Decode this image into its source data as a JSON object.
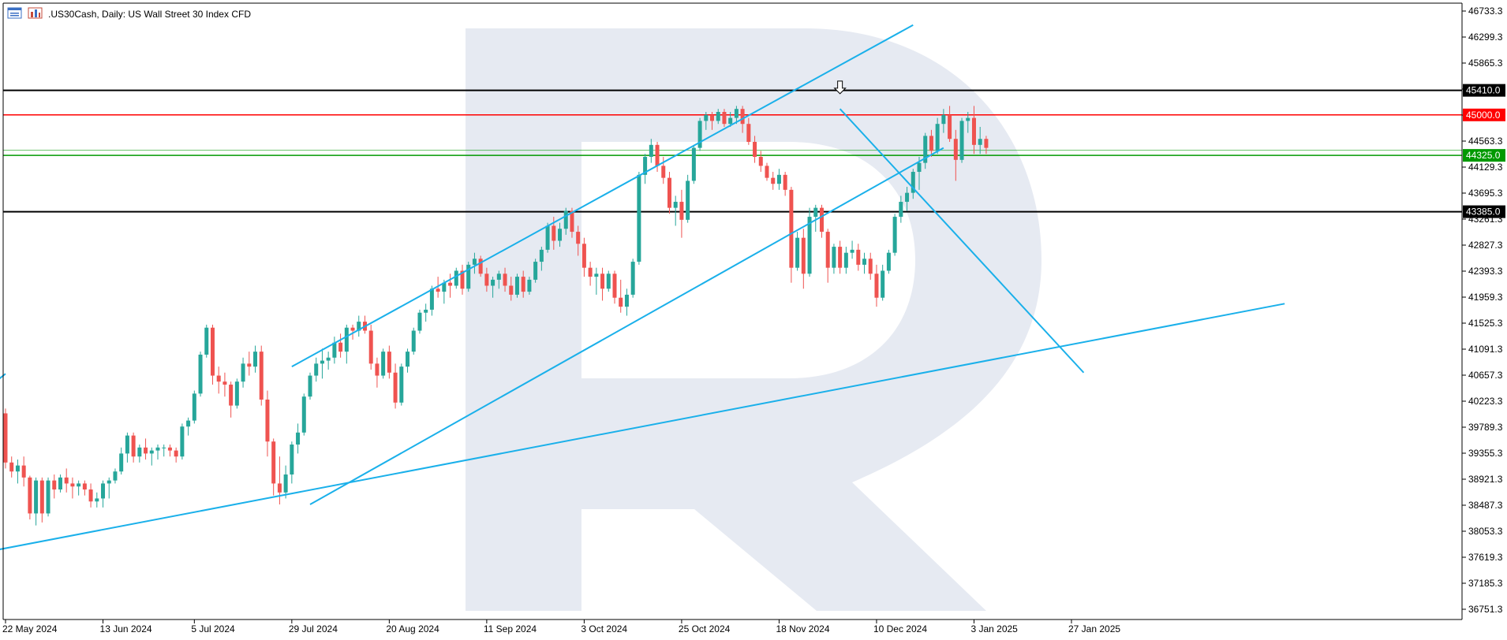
{
  "header": {
    "title": ".US30Cash, Daily:  US Wall Street 30 Index CFD",
    "icons": [
      "chart-window-icon",
      "bar-chart-icon"
    ]
  },
  "colors": {
    "bull": "#26a69a",
    "bear": "#ef5350",
    "trendline": "#1ab0ea",
    "resistance_red": "#ff0000",
    "support_green": "#009900",
    "level_black": "#000000",
    "watermark": "#e6eaf2"
  },
  "chart_data": {
    "type": "candlestick",
    "title": ".US30Cash, Daily:  US Wall Street 30 Index CFD",
    "xlabel": "",
    "ylabel": "",
    "ylim": [
      36400,
      46900
    ],
    "grid": false,
    "y_ticks": [
      "46733.3",
      "46299.3",
      "45865.3",
      "45431.3",
      "44997.3",
      "44563.3",
      "44129.3",
      "43695.3",
      "43261.3",
      "42827.3",
      "42393.3",
      "41959.3",
      "41525.3",
      "41091.3",
      "40657.3",
      "40223.3",
      "39789.3",
      "39355.3",
      "38921.3",
      "38487.3",
      "38053.3",
      "37619.3",
      "37185.3",
      "36751.3"
    ],
    "x_ticks": [
      {
        "label": "22 May 2024",
        "bar": 0
      },
      {
        "label": "13 Jun 2024",
        "bar": 16
      },
      {
        "label": "5 Jul 2024",
        "bar": 31
      },
      {
        "label": "29 Jul 2024",
        "bar": 47
      },
      {
        "label": "20 Aug 2024",
        "bar": 63
      },
      {
        "label": "11 Sep 2024",
        "bar": 79
      },
      {
        "label": "3 Oct 2024",
        "bar": 95
      },
      {
        "label": "25 Oct 2024",
        "bar": 111
      },
      {
        "label": "18 Nov 2024",
        "bar": 127
      },
      {
        "label": "10 Dec 2024",
        "bar": 143
      },
      {
        "label": "3 Jan 2025",
        "bar": 159
      },
      {
        "label": "27 Jan 2025",
        "bar": 175
      }
    ],
    "levels": [
      {
        "label": "45410.0",
        "value": 45410,
        "kind": "black"
      },
      {
        "label": "45000.0",
        "value": 45000,
        "kind": "red"
      },
      {
        "label": "44325.0",
        "value": 44325,
        "kind": "green"
      },
      {
        "label": "43385.0",
        "value": 43385,
        "kind": "black"
      }
    ],
    "thin_level": 44410,
    "trendlines": [
      {
        "name": "channel-upper",
        "from": [
          47,
          40800
        ],
        "to": [
          149,
          46500
        ]
      },
      {
        "name": "channel-lower",
        "from": [
          50,
          38500
        ],
        "to": [
          154,
          44450
        ]
      },
      {
        "name": "long-term-support",
        "from": [
          -1,
          37750
        ],
        "to": [
          210,
          41850
        ]
      },
      {
        "name": "descending-line",
        "from": [
          137,
          45100
        ],
        "to": [
          177,
          40700
        ]
      },
      {
        "name": "left-edge-fragment",
        "from": [
          -1,
          40600
        ],
        "to": [
          0,
          40680
        ]
      }
    ],
    "arrow_marker": {
      "bar": 137,
      "value": 45380
    },
    "candles": [
      [
        40020,
        40100,
        39100,
        39200
      ],
      [
        39200,
        39300,
        38950,
        39050
      ],
      [
        39050,
        39250,
        38850,
        39150
      ],
      [
        39150,
        39300,
        38800,
        38950
      ],
      [
        38950,
        38980,
        38250,
        38350
      ],
      [
        38350,
        38950,
        38150,
        38900
      ],
      [
        38900,
        38950,
        38200,
        38350
      ],
      [
        38350,
        38950,
        38300,
        38900
      ],
      [
        38900,
        39000,
        38600,
        38750
      ],
      [
        38750,
        39000,
        38700,
        38950
      ],
      [
        38950,
        39100,
        38700,
        38850
      ],
      [
        38850,
        38950,
        38600,
        38800
      ],
      [
        38800,
        38900,
        38650,
        38850
      ],
      [
        38850,
        38900,
        38650,
        38750
      ],
      [
        38750,
        38850,
        38450,
        38550
      ],
      [
        38550,
        38700,
        38450,
        38600
      ],
      [
        38600,
        38900,
        38450,
        38850
      ],
      [
        38850,
        38950,
        38600,
        38900
      ],
      [
        38900,
        39100,
        38850,
        39050
      ],
      [
        39050,
        39450,
        39000,
        39350
      ],
      [
        39350,
        39700,
        39200,
        39650
      ],
      [
        39650,
        39700,
        39200,
        39300
      ],
      [
        39300,
        39500,
        39200,
        39450
      ],
      [
        39450,
        39600,
        39250,
        39350
      ],
      [
        39350,
        39450,
        39150,
        39400
      ],
      [
        39400,
        39500,
        39250,
        39450
      ],
      [
        39450,
        39500,
        39300,
        39450
      ],
      [
        39450,
        39500,
        39300,
        39400
      ],
      [
        39400,
        39450,
        39200,
        39300
      ],
      [
        39300,
        39850,
        39250,
        39800
      ],
      [
        39800,
        39950,
        39650,
        39900
      ],
      [
        39900,
        40400,
        39850,
        40350
      ],
      [
        40350,
        41050,
        40300,
        41000
      ],
      [
        41000,
        41500,
        40950,
        41450
      ],
      [
        41450,
        41500,
        40500,
        40650
      ],
      [
        40650,
        40800,
        40350,
        40550
      ],
      [
        40550,
        40700,
        40300,
        40500
      ],
      [
        40500,
        40550,
        39950,
        40150
      ],
      [
        40150,
        40600,
        40100,
        40550
      ],
      [
        40550,
        40950,
        40450,
        40850
      ],
      [
        40850,
        41050,
        40650,
        40800
      ],
      [
        40800,
        41150,
        40700,
        41050
      ],
      [
        41050,
        41150,
        40150,
        40250
      ],
      [
        40250,
        40400,
        39300,
        39550
      ],
      [
        39550,
        39600,
        38650,
        38850
      ],
      [
        38850,
        39300,
        38500,
        38700
      ],
      [
        38700,
        39150,
        38600,
        39000
      ],
      [
        39000,
        39550,
        38850,
        39500
      ],
      [
        39500,
        39850,
        39350,
        39700
      ],
      [
        39700,
        40350,
        39650,
        40300
      ],
      [
        40300,
        40700,
        40250,
        40650
      ],
      [
        40650,
        40950,
        40550,
        40850
      ],
      [
        40850,
        41100,
        40600,
        40900
      ],
      [
        40900,
        41050,
        40750,
        40950
      ],
      [
        40950,
        41300,
        40850,
        41200
      ],
      [
        41200,
        41350,
        40950,
        41050
      ],
      [
        41050,
        41500,
        40850,
        41450
      ],
      [
        41450,
        41500,
        41250,
        41400
      ],
      [
        41400,
        41650,
        41300,
        41550
      ],
      [
        41550,
        41650,
        41350,
        41400
      ],
      [
        41400,
        41500,
        40750,
        40850
      ],
      [
        40850,
        40950,
        40450,
        40650
      ],
      [
        40650,
        41100,
        40600,
        41050
      ],
      [
        41050,
        41150,
        40600,
        40700
      ],
      [
        40700,
        40850,
        40100,
        40200
      ],
      [
        40200,
        40850,
        40150,
        40800
      ],
      [
        40800,
        41100,
        40700,
        41050
      ],
      [
        41050,
        41450,
        41000,
        41400
      ],
      [
        41400,
        41750,
        41350,
        41700
      ],
      [
        41700,
        41850,
        41550,
        41750
      ],
      [
        41750,
        42150,
        41650,
        42100
      ],
      [
        42100,
        42300,
        41950,
        42050
      ],
      [
        42050,
        42250,
        41850,
        42200
      ],
      [
        42200,
        42350,
        41950,
        42150
      ],
      [
        42150,
        42450,
        42100,
        42400
      ],
      [
        42400,
        42500,
        42000,
        42100
      ],
      [
        42100,
        42550,
        42050,
        42500
      ],
      [
        42500,
        42700,
        42350,
        42600
      ],
      [
        42600,
        42650,
        42300,
        42350
      ],
      [
        42350,
        42450,
        42050,
        42150
      ],
      [
        42150,
        42300,
        41950,
        42250
      ],
      [
        42250,
        42400,
        42100,
        42350
      ],
      [
        42350,
        42450,
        42050,
        42150
      ],
      [
        42150,
        42300,
        41900,
        42000
      ],
      [
        42000,
        42350,
        41950,
        42300
      ],
      [
        42300,
        42400,
        41950,
        42050
      ],
      [
        42050,
        42300,
        42000,
        42250
      ],
      [
        42250,
        42600,
        42200,
        42550
      ],
      [
        42550,
        42800,
        42400,
        42750
      ],
      [
        42750,
        43200,
        42700,
        43150
      ],
      [
        43150,
        43300,
        42750,
        42900
      ],
      [
        42900,
        43200,
        42800,
        43100
      ],
      [
        43100,
        43450,
        43000,
        43400
      ],
      [
        43400,
        43450,
        42950,
        43050
      ],
      [
        43050,
        43150,
        42650,
        42850
      ],
      [
        42850,
        42950,
        42300,
        42450
      ],
      [
        42450,
        42550,
        42150,
        42300
      ],
      [
        42300,
        42450,
        42000,
        42350
      ],
      [
        42350,
        42450,
        41900,
        42100
      ],
      [
        42100,
        42400,
        42050,
        42350
      ],
      [
        42350,
        42400,
        41850,
        41950
      ],
      [
        41950,
        42250,
        41700,
        41800
      ],
      [
        41800,
        42100,
        41650,
        42000
      ],
      [
        42000,
        42600,
        41950,
        42550
      ],
      [
        42550,
        44050,
        42500,
        44000
      ],
      [
        44000,
        44350,
        43850,
        44300
      ],
      [
        44300,
        44600,
        44200,
        44500
      ],
      [
        44500,
        44550,
        44050,
        44150
      ],
      [
        44150,
        44300,
        43850,
        43950
      ],
      [
        43950,
        44050,
        43350,
        43450
      ],
      [
        43450,
        43650,
        43150,
        43550
      ],
      [
        43550,
        43750,
        42950,
        43250
      ],
      [
        43250,
        44000,
        43200,
        43900
      ],
      [
        43900,
        44500,
        43850,
        44450
      ],
      [
        44450,
        44950,
        44400,
        44900
      ],
      [
        44900,
        45050,
        44750,
        45000
      ],
      [
        45000,
        45050,
        44750,
        44900
      ],
      [
        44900,
        45100,
        44850,
        45050
      ],
      [
        45050,
        45100,
        44800,
        44850
      ],
      [
        44850,
        45050,
        44800,
        44950
      ],
      [
        44950,
        45150,
        44850,
        45100
      ],
      [
        45100,
        45150,
        44700,
        44850
      ],
      [
        44850,
        44950,
        44500,
        44550
      ],
      [
        44550,
        44650,
        44200,
        44300
      ],
      [
        44300,
        44400,
        44050,
        44150
      ],
      [
        44150,
        44200,
        43900,
        43950
      ],
      [
        43950,
        44050,
        43750,
        43850
      ],
      [
        43850,
        44100,
        43750,
        44000
      ],
      [
        44000,
        44050,
        43650,
        43750
      ],
      [
        43750,
        43800,
        42200,
        42450
      ],
      [
        42450,
        43050,
        42400,
        42950
      ],
      [
        42950,
        43100,
        42100,
        42350
      ],
      [
        42350,
        43450,
        42300,
        43300
      ],
      [
        43300,
        43500,
        43050,
        43450
      ],
      [
        43450,
        43500,
        42950,
        43050
      ],
      [
        43050,
        43100,
        42200,
        42450
      ],
      [
        42450,
        42850,
        42350,
        42800
      ],
      [
        42800,
        42900,
        42350,
        42450
      ],
      [
        42450,
        42800,
        42350,
        42700
      ],
      [
        42700,
        42900,
        42600,
        42750
      ],
      [
        42750,
        42850,
        42400,
        42500
      ],
      [
        42500,
        42700,
        42350,
        42600
      ],
      [
        42600,
        42700,
        42250,
        42350
      ],
      [
        42350,
        42500,
        41800,
        41950
      ],
      [
        41950,
        42500,
        41900,
        42400
      ],
      [
        42400,
        42750,
        42350,
        42700
      ],
      [
        42700,
        43350,
        42650,
        43300
      ],
      [
        43300,
        43650,
        43200,
        43550
      ],
      [
        43550,
        43800,
        43400,
        43700
      ],
      [
        43700,
        44100,
        43600,
        44050
      ],
      [
        44050,
        44300,
        43750,
        44200
      ],
      [
        44200,
        44700,
        44100,
        44650
      ],
      [
        44650,
        44750,
        44300,
        44400
      ],
      [
        44400,
        44950,
        44350,
        44850
      ],
      [
        44850,
        45100,
        44700,
        45000
      ],
      [
        45000,
        45150,
        44550,
        44600
      ],
      [
        44600,
        44750,
        43900,
        44250
      ],
      [
        44250,
        44950,
        44200,
        44900
      ],
      [
        44900,
        45050,
        44700,
        44950
      ],
      [
        44950,
        45150,
        44350,
        44500
      ],
      [
        44500,
        44800,
        44350,
        44600
      ],
      [
        44600,
        44650,
        44350,
        44450
      ]
    ]
  }
}
